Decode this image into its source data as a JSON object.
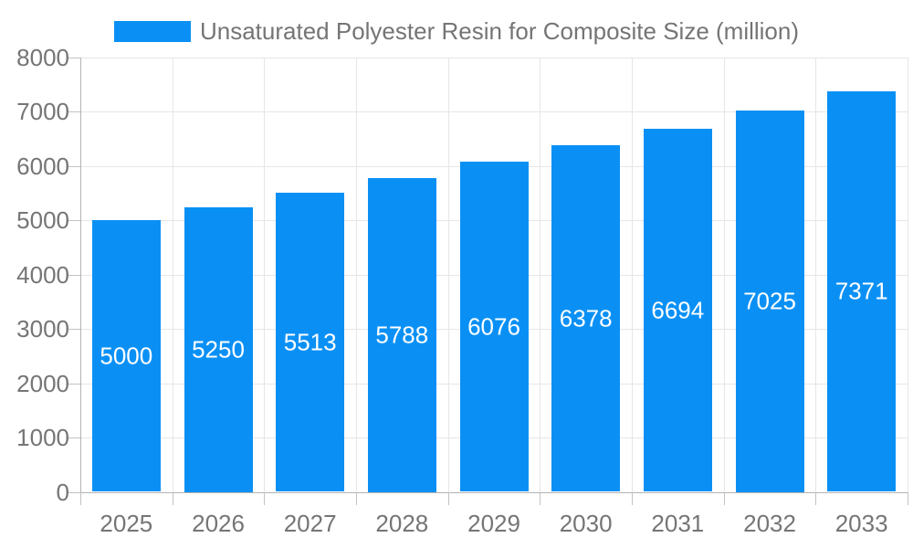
{
  "chart_data": {
    "type": "bar",
    "title": "Unsaturated Polyester Resin for Composite Size (million)",
    "categories": [
      "2025",
      "2026",
      "2027",
      "2028",
      "2029",
      "2030",
      "2031",
      "2032",
      "2033"
    ],
    "values": [
      5000,
      5250,
      5513,
      5788,
      6076,
      6378,
      6694,
      7025,
      7371
    ],
    "series_name": "Unsaturated Polyester Resin for Composite Size (million)",
    "xlabel": "",
    "ylabel": "",
    "ylim": [
      0,
      8000
    ],
    "ytick_step": 1000,
    "ytick_labels": [
      "0",
      "1000",
      "2000",
      "3000",
      "4000",
      "5000",
      "6000",
      "7000",
      "8000"
    ],
    "grid": true,
    "legend_position": "top-center",
    "value_labels_shown": true
  },
  "colors": {
    "bar": "#0a90f5",
    "value_label": "#ffffff",
    "axis_label": "#757575",
    "legend_text": "#757575",
    "gridline": "#e6e6e6",
    "baseline": "#b3b3b3",
    "tick": "#c2c2c2",
    "background": "#ffffff"
  }
}
